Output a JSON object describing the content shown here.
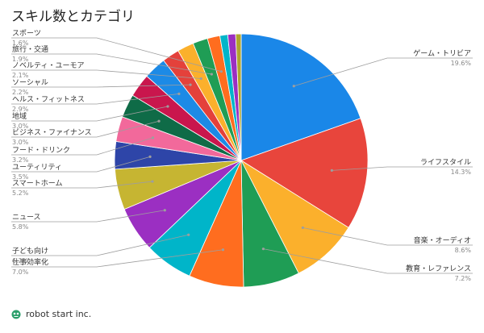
{
  "chart_data": {
    "type": "pie",
    "title": "スキル数とカテゴリ",
    "slices": [
      {
        "label": "ゲーム・トリビア",
        "value": 19.6,
        "value_label": "19.6%",
        "color": "#1a87e8"
      },
      {
        "label": "ライフスタイル",
        "value": 14.3,
        "value_label": "14.3%",
        "color": "#e8453c"
      },
      {
        "label": "音楽・オーディオ",
        "value": 8.6,
        "value_label": "8.6%",
        "color": "#fbb02c"
      },
      {
        "label": "教育・レファレンス",
        "value": 7.2,
        "value_label": "7.2%",
        "color": "#1f9d55"
      },
      {
        "label": "仕事効率化",
        "value": 7.0,
        "value_label": "7.0%",
        "color": "#ff6d1f"
      },
      {
        "label": "子ども向け",
        "value": 6.2,
        "value_label": "6.2%",
        "color": "#00b5c9"
      },
      {
        "label": "ニュース",
        "value": 5.8,
        "value_label": "5.8%",
        "color": "#9b2fc2"
      },
      {
        "label": "スマートホーム",
        "value": 5.2,
        "value_label": "5.2%",
        "color": "#c6b532"
      },
      {
        "label": "ユーティリティ",
        "value": 3.5,
        "value_label": "3.5%",
        "color": "#2e45a8"
      },
      {
        "label": "フード・ドリンク",
        "value": 3.2,
        "value_label": "3.2%",
        "color": "#f2699b"
      },
      {
        "label": "ビジネス・ファイナンス",
        "value": 3.0,
        "value_label": "3.0%",
        "color": "#0f6b47"
      },
      {
        "label": "地域",
        "value": 3.0,
        "value_label": "3.0%",
        "color": "#c9164d"
      },
      {
        "label": "ヘルス・フィットネス",
        "value": 2.9,
        "value_label": "2.9%",
        "color": "#1c8ae6"
      },
      {
        "label": "ソーシャル",
        "value": 2.2,
        "value_label": "2.2%",
        "color": "#e4413b"
      },
      {
        "label": "ノベルティ・ユーモア",
        "value": 2.1,
        "value_label": "2.1%",
        "color": "#fbb02c"
      },
      {
        "label": "旅行・交通",
        "value": 1.9,
        "value_label": "1.9%",
        "color": "#1f9d55"
      },
      {
        "label": "スポーツ",
        "value": 1.6,
        "value_label": "1.6%",
        "color": "#ff6d1f"
      },
      {
        "label": "",
        "value": 1.0,
        "value_label": "",
        "color": "#00b5c9"
      },
      {
        "label": "",
        "value": 1.0,
        "value_label": "",
        "color": "#9b2fc2"
      },
      {
        "label": "",
        "value": 0.7,
        "value_label": "",
        "color": "#b0a52e"
      }
    ]
  },
  "footer": {
    "brand": "robot start inc."
  }
}
